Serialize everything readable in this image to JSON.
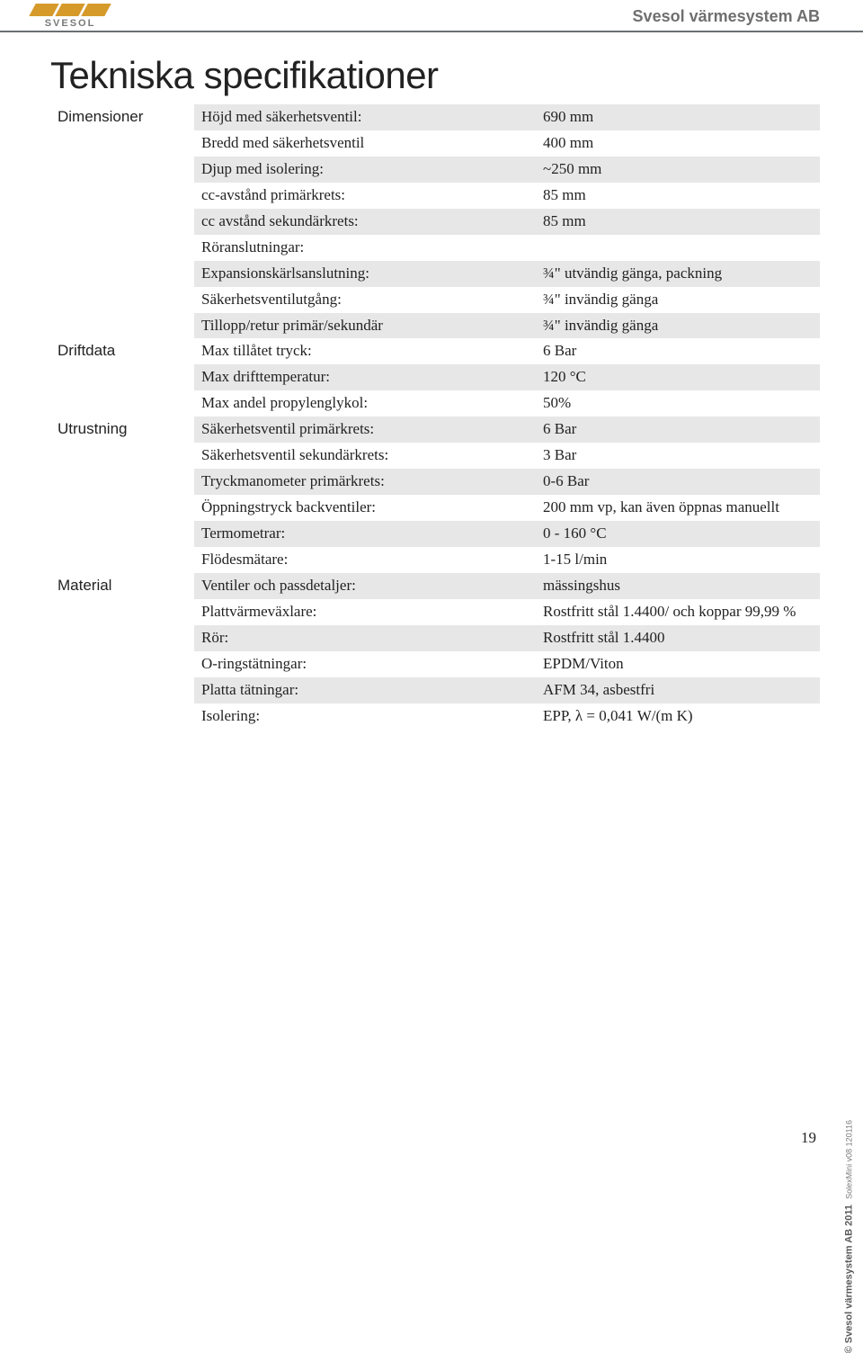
{
  "header": {
    "logo_text": "SVESOL",
    "company": "Svesol värmesystem AB"
  },
  "title": "Tekniska specifikationer",
  "colors": {
    "stripe": "#e7e7e8",
    "text": "#222222",
    "header_line": "#6b6f72",
    "logo_accent": "#d69a2b",
    "muted": "#6f6f70"
  },
  "sections": [
    {
      "name": "Dimensioner",
      "rows": [
        {
          "label": "Höjd med säkerhetsventil:",
          "value": "690 mm"
        },
        {
          "label": "Bredd med säkerhetsventil",
          "value": "400 mm"
        },
        {
          "label": "Djup med isolering:",
          "value": "~250 mm"
        },
        {
          "label": "cc-avstånd primärkrets:",
          "value": "85 mm"
        },
        {
          "label": "cc avstånd sekundärkrets:",
          "value": "85 mm"
        },
        {
          "label": "Röranslutningar:",
          "value": ""
        },
        {
          "label": "Expansionskärlsanslutning:",
          "value": "¾\" utvändig gänga, packning"
        },
        {
          "label": "Säkerhetsventilutgång:",
          "value": "¾\" invändig gänga"
        },
        {
          "label": "Tillopp/retur primär/sekundär",
          "value": "¾\" invändig gänga"
        }
      ]
    },
    {
      "name": "Driftdata",
      "rows": [
        {
          "label": "Max tillåtet tryck:",
          "value": "6 Bar"
        },
        {
          "label": "Max drifttemperatur:",
          "value": "120 °C"
        },
        {
          "label": "Max andel propylenglykol:",
          "value": "50%"
        }
      ]
    },
    {
      "name": "Utrustning",
      "rows": [
        {
          "label": "Säkerhetsventil primärkrets:",
          "value": "6 Bar"
        },
        {
          "label": "Säkerhetsventil sekundärkrets:",
          "value": "3 Bar"
        },
        {
          "label": "Tryckmanometer primärkrets:",
          "value": "0-6 Bar"
        },
        {
          "label": "Öppningstryck backventiler:",
          "value": "200 mm vp, kan även öppnas manuellt"
        },
        {
          "label": "Termometrar:",
          "value": "0 - 160 °C"
        },
        {
          "label": "Flödesmätare:",
          "value": "1-15 l/min"
        }
      ]
    },
    {
      "name": "Material",
      "rows": [
        {
          "label": "Ventiler och passdetaljer:",
          "value": "mässingshus"
        },
        {
          "label": "Plattvärmeväxlare:",
          "value": "Rostfritt stål 1.4400/ och koppar 99,99 %"
        },
        {
          "label": "Rör:",
          "value": "Rostfritt stål 1.4400"
        },
        {
          "label": "O-ringstätningar:",
          "value": "EPDM/Viton"
        },
        {
          "label": "Platta tätningar:",
          "value": "AFM 34, asbestfri"
        },
        {
          "label": "Isolering:",
          "value": "EPP, λ = 0,041 W/(m K)"
        }
      ]
    }
  ],
  "side_credit": {
    "prefix": "© Svesol värmesystem AB 2011",
    "suffix": "SolexMini v08 120116"
  },
  "page_number": "19"
}
